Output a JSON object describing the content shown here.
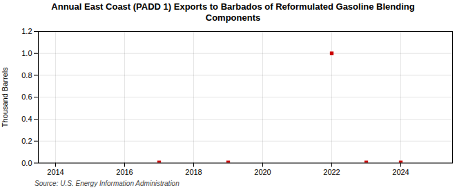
{
  "chart_data": {
    "type": "scatter",
    "title": "Annual East Coast (PADD 1) Exports to Barbados of Reformulated Gasoline Blending\nComponents",
    "ylabel": "Thousand Barrels",
    "caption": "Source: U.S. Energy Information Administration",
    "x": [
      2017,
      2019,
      2022,
      2023,
      2024
    ],
    "values": [
      0.005,
      0.005,
      1.0,
      0.005,
      0.005
    ],
    "color": "#cc0000",
    "marker": "square",
    "xlim": [
      2013.5,
      2025.5
    ],
    "xticks": [
      2014,
      2016,
      2018,
      2020,
      2022,
      2024
    ],
    "ylim": [
      0.0,
      1.2
    ],
    "yticks": [
      {
        "value": 0.0,
        "label": "0.0"
      },
      0.2,
      0.4,
      0.6,
      0.8,
      {
        "value": 1.0,
        "label": "1.0"
      },
      1.2
    ],
    "grid": true
  }
}
